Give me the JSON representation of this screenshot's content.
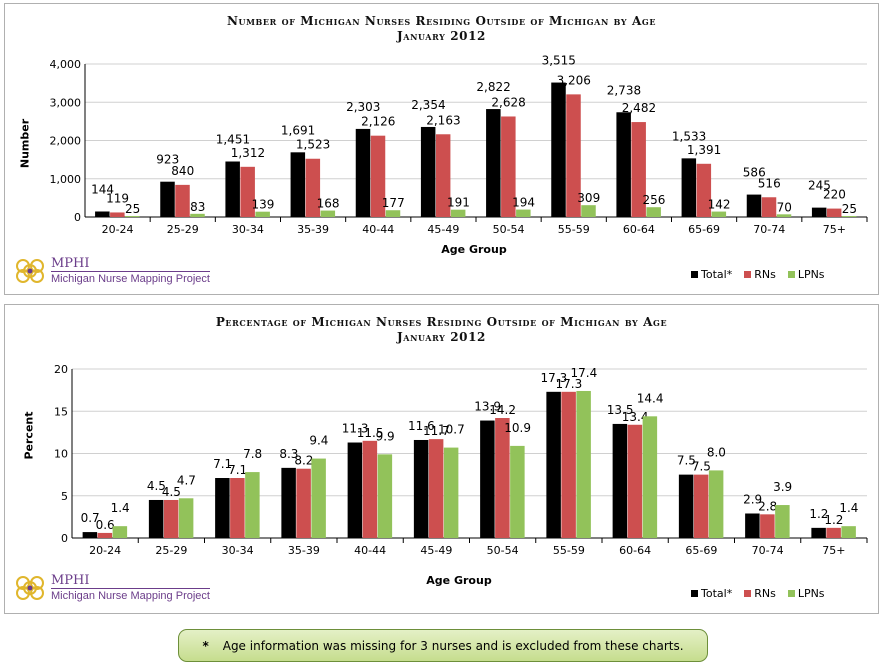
{
  "colors": {
    "total": "#000000",
    "rns": "#cd4f4f",
    "lpns": "#92c25a",
    "logo": "#6b3d8a",
    "logo_gold": "#e0b62c"
  },
  "logo": {
    "brand": "MPHI",
    "sub": "Michigan Nurse Mapping Project",
    "icon": "mphi-logo-icon"
  },
  "note": {
    "star": "*",
    "text": "Age information was missing for 3 nurses and is excluded from these charts."
  },
  "chart_data": [
    {
      "type": "bar",
      "title": "Number of Michigan Nurses Residing Outside of Michigan by Age",
      "subtitle": "January 2012",
      "xlabel": "Age Group",
      "ylabel": "Number",
      "ylim": [
        0,
        4000
      ],
      "yticks": [
        "0",
        "1,000",
        "2,000",
        "3,000",
        "4,000"
      ],
      "ytick_values": [
        0,
        1000,
        2000,
        3000,
        4000
      ],
      "grid": true,
      "legend_position": "bottom-right",
      "categories": [
        "20-24",
        "25-29",
        "30-34",
        "35-39",
        "40-44",
        "45-49",
        "50-54",
        "55-59",
        "60-64",
        "65-69",
        "70-74",
        "75+"
      ],
      "series": [
        {
          "name": "Total*",
          "values": [
            144,
            923,
            1451,
            1691,
            2303,
            2354,
            2822,
            3515,
            2738,
            1533,
            586,
            245
          ],
          "labels": [
            "144",
            "923",
            "1,451",
            "1,691",
            "2,303",
            "2,354",
            "2,822",
            "3,515",
            "2,738",
            "1,533",
            "586",
            "245"
          ]
        },
        {
          "name": "RNs",
          "values": [
            119,
            840,
            1312,
            1523,
            2126,
            2163,
            2628,
            3206,
            2482,
            1391,
            516,
            220
          ],
          "labels": [
            "119",
            "840",
            "1,312",
            "1,523",
            "2,126",
            "2,163",
            "2,628",
            "3,206",
            "2,482",
            "1,391",
            "516",
            "220"
          ]
        },
        {
          "name": "LPNs",
          "values": [
            25,
            83,
            139,
            168,
            177,
            191,
            194,
            309,
            256,
            142,
            70,
            25
          ],
          "labels": [
            "25",
            "83",
            "139",
            "168",
            "177",
            "191",
            "194",
            "309",
            "256",
            "142",
            "70",
            "25"
          ]
        }
      ]
    },
    {
      "type": "bar",
      "title": "Percentage of Michigan Nurses Residing Outside of Michigan by Age",
      "subtitle": "January 2012",
      "xlabel": "Age Group",
      "ylabel": "Percent",
      "ylim": [
        0,
        20
      ],
      "yticks": [
        "0",
        "5",
        "10",
        "15",
        "20"
      ],
      "ytick_values": [
        0,
        5,
        10,
        15,
        20
      ],
      "grid": true,
      "legend_position": "bottom-right",
      "categories": [
        "20-24",
        "25-29",
        "30-34",
        "35-39",
        "40-44",
        "45-49",
        "50-54",
        "55-59",
        "60-64",
        "65-69",
        "70-74",
        "75+"
      ],
      "series": [
        {
          "name": "Total*",
          "values": [
            0.7,
            4.5,
            7.1,
            8.3,
            11.3,
            11.6,
            13.9,
            17.3,
            13.5,
            7.5,
            2.9,
            1.2
          ],
          "labels": [
            "0.7",
            "4.5",
            "7.1",
            "8.3",
            "11.3",
            "11.6",
            "13.9",
            "17.3",
            "13.5",
            "7.5",
            "2.9",
            "1.2"
          ]
        },
        {
          "name": "RNs",
          "values": [
            0.6,
            4.5,
            7.1,
            8.2,
            11.5,
            11.7,
            14.2,
            17.3,
            13.4,
            7.5,
            2.8,
            1.2
          ],
          "labels": [
            "0.6",
            "4.5",
            "7.1",
            "8.2",
            "11.5",
            "11.7",
            "14.2",
            "17.3",
            "13.4",
            "7.5",
            "2.8",
            "1.2"
          ]
        },
        {
          "name": "LPNs",
          "values": [
            1.4,
            4.7,
            7.8,
            9.4,
            9.9,
            10.7,
            10.9,
            17.4,
            14.4,
            8.0,
            3.9,
            1.4
          ],
          "labels": [
            "1.4",
            "4.7",
            "7.8",
            "9.4",
            "9.9",
            "10.7",
            "10.9",
            "17.4",
            "14.4",
            "8.0",
            "3.9",
            "1.4"
          ]
        }
      ]
    }
  ]
}
